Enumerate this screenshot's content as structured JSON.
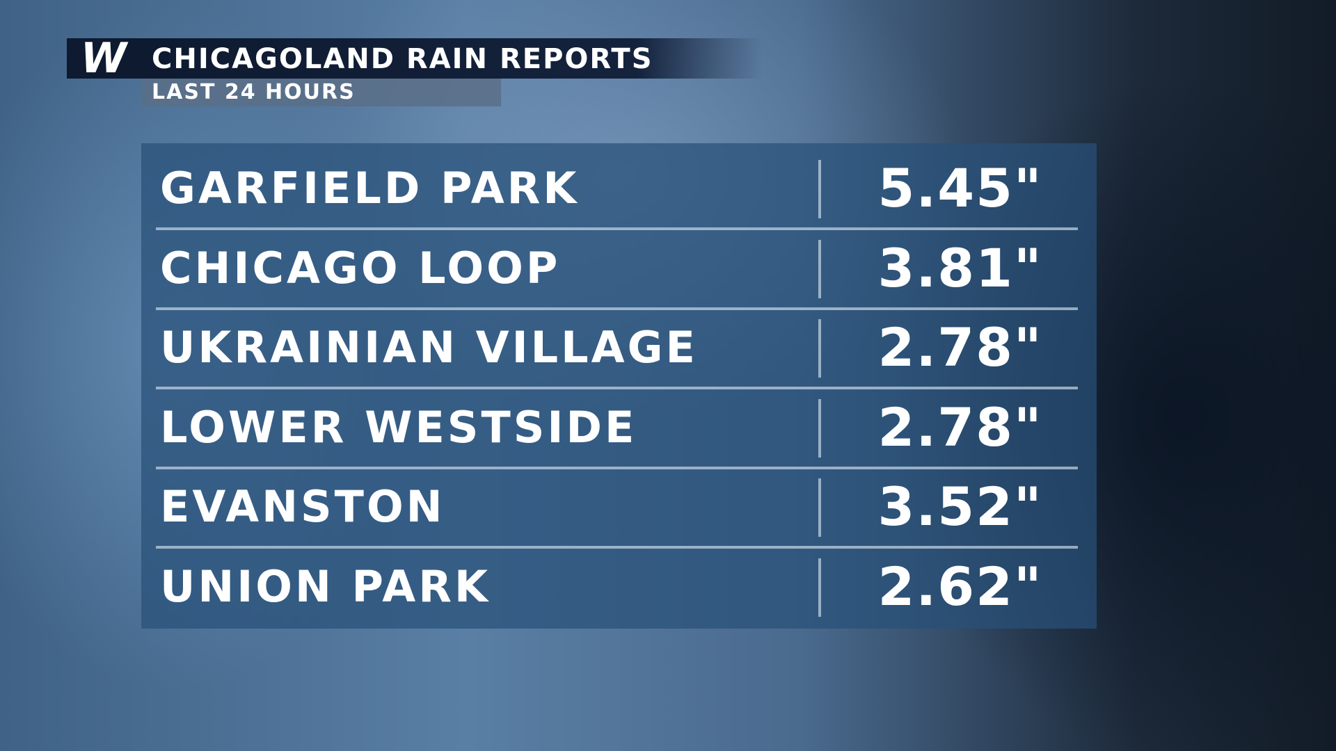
{
  "header": {
    "logo": "W",
    "title": "CHICAGOLAND RAIN REPORTS",
    "subtitle": "LAST 24 HOURS"
  },
  "table": {
    "rows": [
      [
        "GARFIELD PARK",
        "5.45\""
      ],
      [
        "CHICAGO LOOP",
        "3.81\""
      ],
      [
        "UKRAINIAN VILLAGE",
        "2.78\""
      ],
      [
        "LOWER WESTSIDE",
        "2.78\""
      ],
      [
        "EVANSTON",
        "3.52\""
      ],
      [
        "UNION PARK",
        "2.62\""
      ]
    ]
  }
}
